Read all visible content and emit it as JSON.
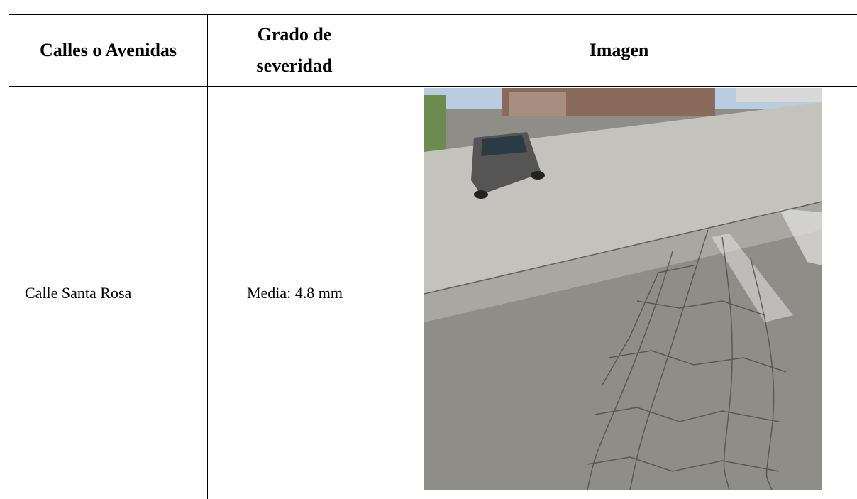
{
  "table": {
    "header": [
      "Calles o Avenidas",
      "Grado de severidad",
      "Imagen"
    ],
    "rows": [
      [
        "Calle Santa Rosa",
        "Media: 4.8 mm"
      ]
    ]
  }
}
